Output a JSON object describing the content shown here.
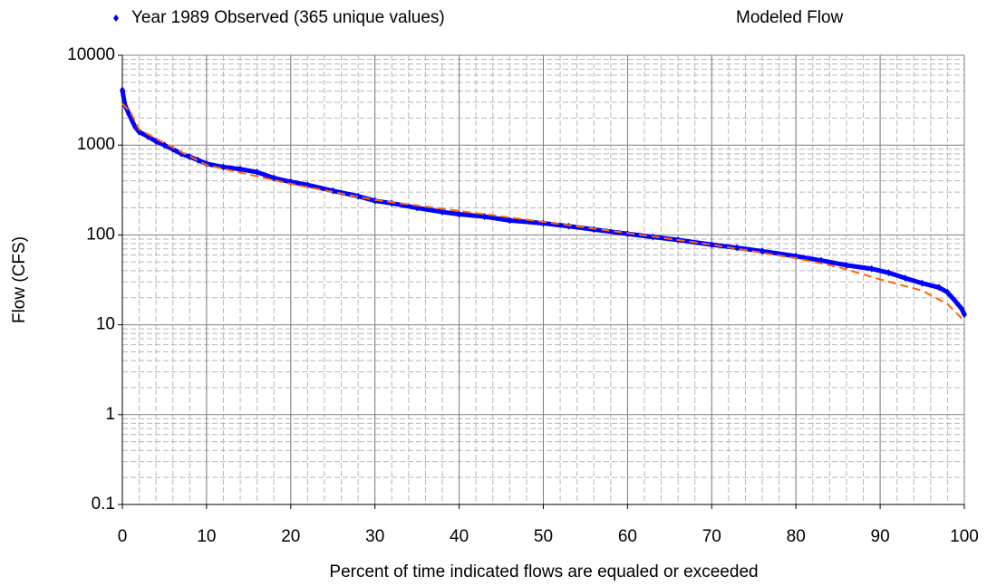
{
  "chart_data": {
    "type": "line",
    "x_label": "Percent of time indicated flows are equaled or exceeded",
    "y_label": "Flow (CFS)",
    "xlim": [
      0,
      100
    ],
    "xticks": [
      0,
      10,
      20,
      30,
      40,
      50,
      60,
      70,
      80,
      90,
      100
    ],
    "ylim": [
      0.1,
      10000
    ],
    "yticks": [
      0.1,
      1,
      10,
      100,
      1000,
      10000
    ],
    "y_log": true,
    "grid": true,
    "minor_grid": true,
    "legend": "top",
    "series": [
      {
        "name": "Year 1989 Observed (365 unique values)",
        "color": "#0000ff",
        "style": "markers",
        "x": [
          0,
          0.3,
          0.8,
          1.5,
          2,
          3,
          4,
          5,
          6,
          7,
          8,
          9,
          10,
          12,
          14,
          16,
          18,
          20,
          22,
          25,
          28,
          30,
          32,
          35,
          38,
          40,
          43,
          46,
          50,
          53,
          56,
          60,
          63,
          66,
          70,
          73,
          76,
          80,
          83,
          86,
          89,
          91,
          93,
          95,
          97,
          98,
          99,
          99.7,
          100
        ],
        "values": [
          4100,
          2800,
          2200,
          1600,
          1400,
          1250,
          1100,
          1000,
          900,
          800,
          740,
          680,
          620,
          570,
          540,
          500,
          430,
          390,
          360,
          310,
          270,
          240,
          225,
          200,
          180,
          170,
          160,
          145,
          135,
          125,
          115,
          103,
          95,
          88,
          78,
          72,
          66,
          58,
          52,
          46,
          42,
          38,
          33,
          29,
          26,
          23,
          18,
          15,
          13
        ]
      },
      {
        "name": "Modeled Flow",
        "color": "#ff6600",
        "style": "dashed",
        "x": [
          0,
          1,
          2,
          5,
          10,
          20,
          30,
          40,
          50,
          60,
          70,
          80,
          85,
          90,
          95,
          98,
          100
        ],
        "values": [
          2900,
          2300,
          1500,
          1050,
          600,
          370,
          245,
          185,
          140,
          105,
          78,
          55,
          44,
          32,
          24,
          17,
          11
        ]
      }
    ]
  }
}
